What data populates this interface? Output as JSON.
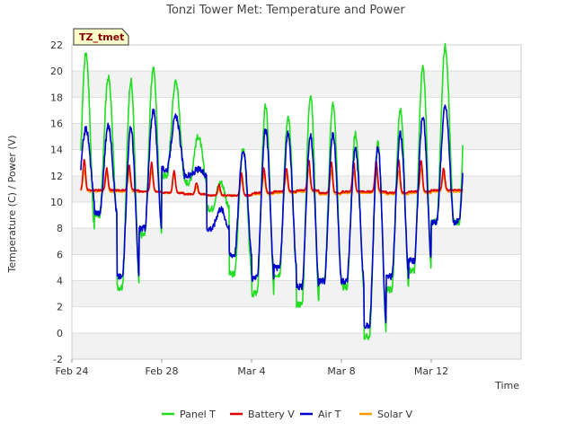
{
  "chart_data": {
    "type": "line",
    "title": "Tonzi Tower Met: Temperature and Power",
    "xlabel": "Time",
    "ylabel": "Temperature (C) / Power (V)",
    "badge": "TZ_tmet",
    "ylim": [
      -2,
      22
    ],
    "yticks": [
      -2,
      0,
      2,
      4,
      6,
      8,
      10,
      12,
      14,
      16,
      18,
      20,
      22
    ],
    "xlim": [
      0,
      20
    ],
    "xticks": [
      {
        "x": 0,
        "label": "Feb 24"
      },
      {
        "x": 4,
        "label": "Feb 28"
      },
      {
        "x": 8,
        "label": "Mar 4"
      },
      {
        "x": 12,
        "label": "Mar 8"
      },
      {
        "x": 16,
        "label": "Mar 12"
      }
    ],
    "x_range_days": [
      0.4,
      17.4
    ],
    "series": [
      {
        "name": "Panel T",
        "color": "#22dd22",
        "daily_min": [
          8.0,
          9.0,
          3.5,
          7.5,
          12.0,
          11.5,
          9.5,
          4.5,
          3.0,
          4.5,
          2.2,
          4.0,
          3.5,
          -0.3,
          3.3,
          4.8,
          8.5
        ],
        "daily_max": [
          21.4,
          19.5,
          19.3,
          20.2,
          19.2,
          15.0,
          11.5,
          14.0,
          17.3,
          16.5,
          18.2,
          17.5,
          15.2,
          14.5,
          17.0,
          20.3,
          21.9
        ]
      },
      {
        "name": "Battery V",
        "color": "#dd0000",
        "daily_min": [
          10.9,
          10.9,
          10.9,
          10.8,
          10.7,
          10.6,
          10.5,
          10.5,
          10.7,
          10.8,
          10.9,
          10.7,
          10.8,
          10.8,
          10.7,
          10.8,
          10.9
        ],
        "daily_max": [
          13.2,
          12.6,
          12.8,
          13.0,
          12.4,
          11.5,
          11.3,
          12.2,
          12.6,
          12.6,
          13.2,
          13.1,
          13.0,
          13.1,
          13.2,
          13.2,
          12.6
        ]
      },
      {
        "name": "Air T",
        "color": "#0000cc",
        "daily_min": [
          10.2,
          9.2,
          4.3,
          8.0,
          12.5,
          12.0,
          8.0,
          6.0,
          4.2,
          5.0,
          3.5,
          4.0,
          4.0,
          0.5,
          4.3,
          5.5,
          8.5
        ],
        "daily_max": [
          15.6,
          15.8,
          15.7,
          17.0,
          16.5,
          12.5,
          9.5,
          14.0,
          15.5,
          15.2,
          15.0,
          15.2,
          14.0,
          14.2,
          15.2,
          16.5,
          17.3
        ]
      },
      {
        "name": "Solar V",
        "color": "#ff9900",
        "daily_min": [
          10.8,
          10.8,
          10.8,
          10.8,
          10.7,
          10.6,
          10.5,
          10.5,
          10.6,
          10.7,
          10.8,
          10.6,
          10.7,
          10.7,
          10.6,
          10.7,
          10.8
        ],
        "daily_max": [
          12.5,
          12.2,
          12.3,
          12.4,
          12.2,
          11.2,
          11.0,
          11.8,
          12.1,
          12.1,
          12.5,
          12.4,
          12.3,
          12.4,
          12.4,
          12.6,
          12.2
        ]
      }
    ],
    "legend_position": "bottom-center"
  }
}
